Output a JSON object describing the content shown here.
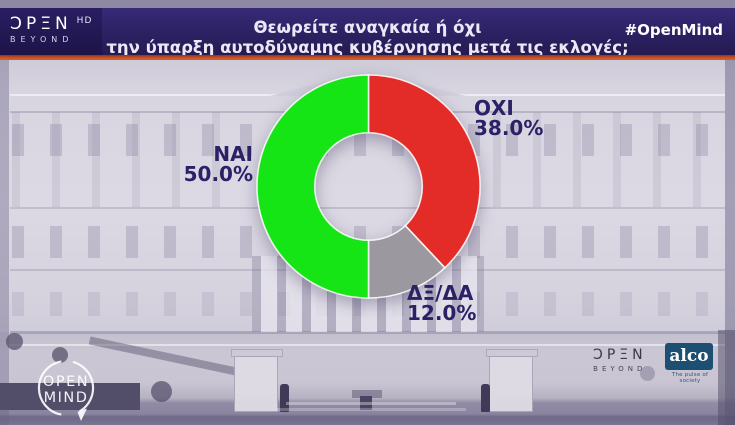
{
  "header": {
    "brand": {
      "text": "OPEN",
      "display": "ƆPΞN",
      "hd": "HD",
      "sub": "BEYOND"
    },
    "question_line1": "Θεωρείτε αναγκαία ή όχι",
    "question_line2": "την ύπαρξη αυτοδύναμης κυβέρνησης μετά τις εκλογές;",
    "hashtag": "#OpenMind",
    "bar_color": "#2d2366",
    "accent_line_color": "#d8602a"
  },
  "chart_data": {
    "type": "pie",
    "subtype": "donut",
    "title": "Θεωρείτε αναγκαία ή όχι την ύπαρξη αυτοδύναμης κυβέρνησης μετά τις εκλογές;",
    "slices": [
      {
        "label": "ΟΧΙ",
        "value": 38.0,
        "display": "38.0%",
        "color": "#e32b27"
      },
      {
        "label": "ΔΞ/ΔΑ",
        "value": 12.0,
        "display": "12.0%",
        "color": "#9c98a0"
      },
      {
        "label": "ΝΑΙ",
        "value": 50.0,
        "display": "50.0%",
        "color": "#15e415"
      }
    ],
    "start_angle_deg": 0,
    "direction": "clockwise",
    "inner_radius_ratio": 0.48,
    "label_color": "#2a2166",
    "legend": "none",
    "slice_border_color": "#ffffff"
  },
  "footer": {
    "open_mind": {
      "line1": "OPEN",
      "line2": "MIND"
    },
    "open_beyond": {
      "text": "OPEN",
      "display": "ƆPΞN",
      "sub": "BEYOND"
    },
    "alco": {
      "text": "alco",
      "tagline": "The pulse of society"
    }
  }
}
